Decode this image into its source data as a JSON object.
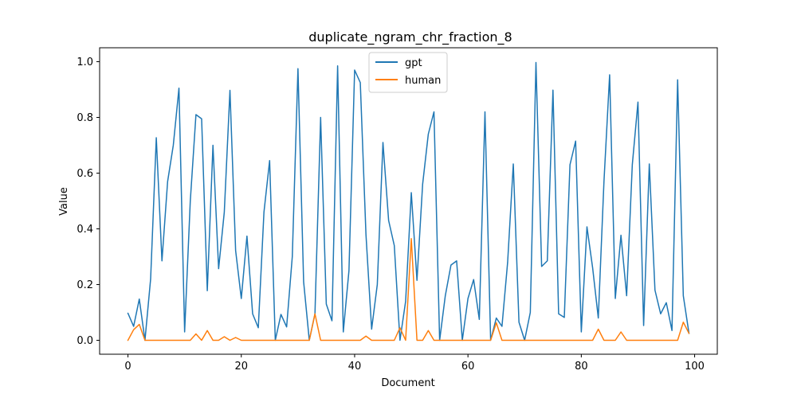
{
  "chart_data": {
    "type": "line",
    "title": "duplicate_ngram_chr_fraction_8",
    "xlabel": "Document",
    "ylabel": "Value",
    "xlim": [
      -5,
      104
    ],
    "ylim": [
      -0.05,
      1.05
    ],
    "xticks": [
      0,
      20,
      40,
      60,
      80,
      100
    ],
    "xtick_labels": [
      "0",
      "20",
      "40",
      "60",
      "80",
      "100"
    ],
    "yticks": [
      0.0,
      0.2,
      0.4,
      0.6,
      0.8,
      1.0
    ],
    "ytick_labels": [
      "0.0",
      "0.2",
      "0.4",
      "0.6",
      "0.8",
      "1.0"
    ],
    "legend_position": "top-center",
    "series": [
      {
        "name": "gpt",
        "color": "#1f77b4",
        "values": [
          0.097,
          0.05,
          0.148,
          0.0,
          0.22,
          0.727,
          0.285,
          0.57,
          0.7,
          0.905,
          0.03,
          0.5,
          0.81,
          0.795,
          0.178,
          0.7,
          0.257,
          0.46,
          0.897,
          0.322,
          0.15,
          0.374,
          0.095,
          0.045,
          0.46,
          0.645,
          0.0,
          0.093,
          0.048,
          0.3,
          0.975,
          0.21,
          0.0,
          0.095,
          0.8,
          0.13,
          0.07,
          0.985,
          0.03,
          0.25,
          0.97,
          0.925,
          0.38,
          0.04,
          0.2,
          0.71,
          0.43,
          0.34,
          0.0,
          0.14,
          0.53,
          0.215,
          0.56,
          0.74,
          0.82,
          0.0,
          0.16,
          0.27,
          0.285,
          0.0,
          0.15,
          0.218,
          0.075,
          0.82,
          0.0,
          0.08,
          0.05,
          0.28,
          0.633,
          0.065,
          0.0,
          0.1,
          0.997,
          0.265,
          0.285,
          0.898,
          0.095,
          0.082,
          0.63,
          0.715,
          0.03,
          0.407,
          0.26,
          0.08,
          0.57,
          0.953,
          0.15,
          0.377,
          0.16,
          0.63,
          0.855,
          0.053,
          0.633,
          0.18,
          0.095,
          0.135,
          0.035,
          0.935,
          0.16,
          0.025
        ]
      },
      {
        "name": "human",
        "color": "#ff7f0e",
        "values": [
          0.0,
          0.038,
          0.057,
          0.0,
          0.0,
          0.0,
          0.0,
          0.0,
          0.0,
          0.0,
          0.0,
          0.0,
          0.023,
          0.0,
          0.035,
          0.0,
          0.0,
          0.013,
          0.0,
          0.01,
          0.0,
          0.0,
          0.0,
          0.0,
          0.0,
          0.0,
          0.0,
          0.0,
          0.0,
          0.0,
          0.0,
          0.0,
          0.0,
          0.095,
          0.0,
          0.0,
          0.0,
          0.0,
          0.0,
          0.0,
          0.0,
          0.0,
          0.015,
          0.0,
          0.0,
          0.0,
          0.0,
          0.0,
          0.045,
          0.0,
          0.365,
          0.0,
          0.0,
          0.035,
          0.0,
          0.0,
          0.0,
          0.0,
          0.0,
          0.0,
          0.0,
          0.0,
          0.0,
          0.0,
          0.0,
          0.063,
          0.0,
          0.0,
          0.0,
          0.0,
          0.0,
          0.0,
          0.0,
          0.0,
          0.0,
          0.0,
          0.0,
          0.0,
          0.0,
          0.0,
          0.0,
          0.0,
          0.0,
          0.04,
          0.0,
          0.0,
          0.0,
          0.03,
          0.0,
          0.0,
          0.0,
          0.0,
          0.0,
          0.0,
          0.0,
          0.0,
          0.0,
          0.0,
          0.065,
          0.025
        ]
      }
    ]
  }
}
